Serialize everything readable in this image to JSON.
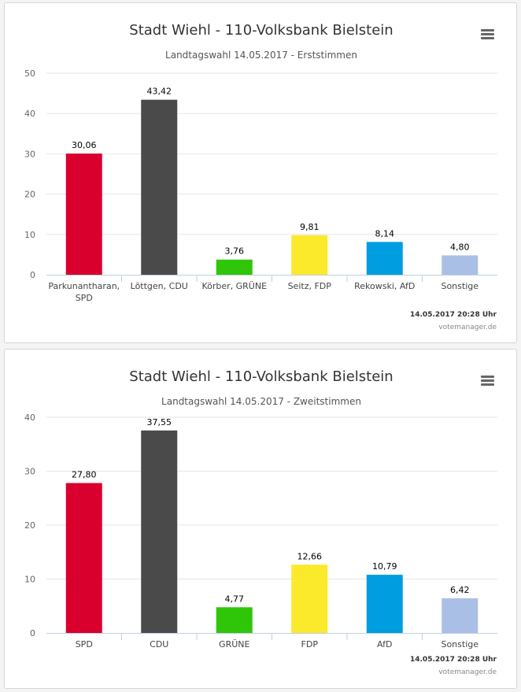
{
  "chart_data": [
    {
      "type": "bar",
      "title": "Stadt Wiehl - 110-Volksbank Bielstein",
      "subtitle": "Landtagswahl 14.05.2017 - Erststimmen",
      "categories": [
        [
          "Parkunantharan,",
          "SPD"
        ],
        [
          "Löttgen, CDU"
        ],
        [
          "Körber, GRÜNE"
        ],
        [
          "Seitz, FDP"
        ],
        [
          "Rekowski, AfD"
        ],
        [
          "Sonstige"
        ]
      ],
      "values": [
        30.06,
        43.42,
        3.76,
        9.81,
        8.14,
        4.8
      ],
      "value_labels": [
        "30,06",
        "43,42",
        "3,76",
        "9,81",
        "8,14",
        "4,80"
      ],
      "colors": [
        "#d9002e",
        "#4a4a4a",
        "#2fc60a",
        "#fbe92c",
        "#009de0",
        "#aabfe6"
      ],
      "ylim": [
        0,
        50
      ],
      "yticks": [
        0,
        10,
        20,
        30,
        40,
        50
      ],
      "xlabel": "",
      "ylabel": "",
      "grid": true,
      "legend": "none",
      "credit_time": "14.05.2017 20:28 Uhr",
      "credit_site": "votemanager.de"
    },
    {
      "type": "bar",
      "title": "Stadt Wiehl - 110-Volksbank Bielstein",
      "subtitle": "Landtagswahl 14.05.2017 - Zweitstimmen",
      "categories": [
        [
          "SPD"
        ],
        [
          "CDU"
        ],
        [
          "GRÜNE"
        ],
        [
          "FDP"
        ],
        [
          "AfD"
        ],
        [
          "Sonstige"
        ]
      ],
      "values": [
        27.8,
        37.55,
        4.77,
        12.66,
        10.79,
        6.42
      ],
      "value_labels": [
        "27,80",
        "37,55",
        "4,77",
        "12,66",
        "10,79",
        "6,42"
      ],
      "colors": [
        "#d9002e",
        "#4a4a4a",
        "#2fc60a",
        "#fbe92c",
        "#009de0",
        "#aabfe6"
      ],
      "ylim": [
        0,
        40
      ],
      "yticks": [
        0,
        10,
        20,
        30,
        40
      ],
      "xlabel": "",
      "ylabel": "",
      "grid": true,
      "legend": "none",
      "credit_time": "14.05.2017 20:28 Uhr",
      "credit_site": "votemanager.de"
    }
  ]
}
